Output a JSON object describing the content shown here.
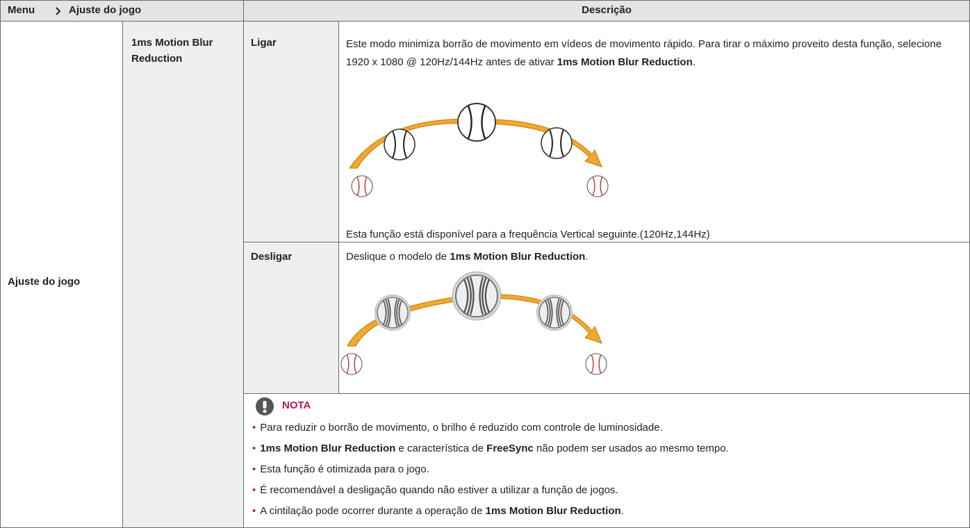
{
  "header": {
    "menu_path": [
      "Menu",
      "Ajuste do jogo"
    ],
    "description": "Descrição"
  },
  "table": {
    "menu": "Ajuste do jogo",
    "submenu": "1ms Motion Blur Reduction",
    "options": [
      {
        "name": "Ligar",
        "description": [
          {
            "text": "Este modo minimiza borrão de movimento em vídeos de movimento rápido. Para tirar o máximo proveito desta função, selecione 1920 x 1080 @ 120Hz/144Hz antes de ativar "
          },
          {
            "text": "1ms Motion Blur Reduction",
            "bold": true
          },
          {
            "text": "."
          }
        ],
        "note": "Esta função está disponível para a frequência Vertical seguinte.(120Hz,144Hz)"
      },
      {
        "name": "Desligar",
        "description": [
          {
            "text": "Deslique o modelo de "
          },
          {
            "text": "1ms Motion Blur Reduction",
            "bold": true
          },
          {
            "text": "."
          }
        ]
      }
    ]
  },
  "nota": {
    "title": "NOTA",
    "items": [
      [
        {
          "text": "Para reduzir o borrão de movimento, o brilho é reduzido com controle de luminosidade."
        }
      ],
      [
        {
          "text": "1ms Motion Blur Reduction",
          "bold": true
        },
        {
          "text": " e característica de "
        },
        {
          "text": "FreeSync",
          "bold": true
        },
        {
          "text": " não podem ser usados ao mesmo tempo."
        }
      ],
      [
        {
          "text": "Esta função é otimizada para o jogo."
        }
      ],
      [
        {
          "text": "É recomendável a desligação quando não estiver a utilizar a função de jogos."
        }
      ],
      [
        {
          "text": "A cintilação pode ocorrer durante a operação de "
        },
        {
          "text": "1ms Motion Blur Reduction",
          "bold": true
        },
        {
          "text": "."
        }
      ]
    ]
  }
}
